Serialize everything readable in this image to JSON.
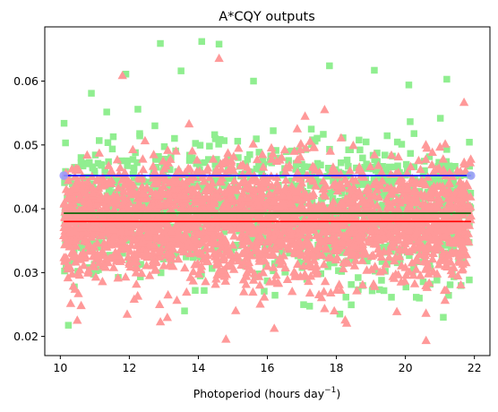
{
  "chart_data": {
    "type": "scatter",
    "title": "A*CQY outputs",
    "xlabel": "Photoperiod (hours day",
    "xlabel_sup": "−1",
    "xlabel_close": ")",
    "ylabel": "",
    "xlim": [
      9.55,
      22.45
    ],
    "ylim": [
      0.017,
      0.0685
    ],
    "xticks": [
      10,
      12,
      14,
      16,
      18,
      20,
      22
    ],
    "yticks": [
      0.02,
      0.03,
      0.04,
      0.05,
      0.06
    ],
    "ytick_labels": [
      "0.02",
      "0.03",
      "0.04",
      "0.05",
      "0.06"
    ],
    "grid": false,
    "legend": null,
    "scatter_series": [
      {
        "marker": "square",
        "color": "#90ee90",
        "x_range": [
          10.1,
          21.9
        ],
        "y_center": 0.0395,
        "y_spread": 0.0085,
        "notable_points": [
          {
            "x": 12.9,
            "y": 0.0659
          },
          {
            "x": 14.1,
            "y": 0.0662
          },
          {
            "x": 14.6,
            "y": 0.0658
          },
          {
            "x": 13.5,
            "y": 0.0616
          },
          {
            "x": 11.9,
            "y": 0.0611
          },
          {
            "x": 15.6,
            "y": 0.06
          },
          {
            "x": 17.8,
            "y": 0.0624
          },
          {
            "x": 19.1,
            "y": 0.0617
          },
          {
            "x": 21.2,
            "y": 0.0603
          },
          {
            "x": 10.9,
            "y": 0.0581
          },
          {
            "x": 20.1,
            "y": 0.0594
          },
          {
            "x": 21.1,
            "y": 0.023
          },
          {
            "x": 13.6,
            "y": 0.024
          },
          {
            "x": 18.1,
            "y": 0.0235
          }
        ]
      },
      {
        "marker": "triangle",
        "color": "#ff9999",
        "x_range": [
          10.1,
          21.9
        ],
        "y_center": 0.038,
        "y_spread": 0.008,
        "notable_points": [
          {
            "x": 14.6,
            "y": 0.0636
          },
          {
            "x": 11.8,
            "y": 0.0609
          },
          {
            "x": 14.8,
            "y": 0.0196
          },
          {
            "x": 20.6,
            "y": 0.0194
          },
          {
            "x": 13.1,
            "y": 0.023
          },
          {
            "x": 16.2,
            "y": 0.0213
          },
          {
            "x": 18.3,
            "y": 0.0221
          },
          {
            "x": 10.3,
            "y": 0.0252
          },
          {
            "x": 21.7,
            "y": 0.0567
          }
        ]
      }
    ],
    "lines": [
      {
        "color": "#0000ff",
        "x": [
          10.1,
          21.9
        ],
        "y": [
          0.0452,
          0.0452
        ],
        "end_markers": "circle"
      },
      {
        "color": "#006400",
        "x": [
          10.1,
          21.9
        ],
        "y": [
          0.0393,
          0.0393
        ]
      },
      {
        "color": "#ff0000",
        "x": [
          10.1,
          21.9
        ],
        "y": [
          0.038,
          0.038
        ]
      }
    ],
    "marker_colors": {
      "circle": "#9999ff"
    }
  }
}
